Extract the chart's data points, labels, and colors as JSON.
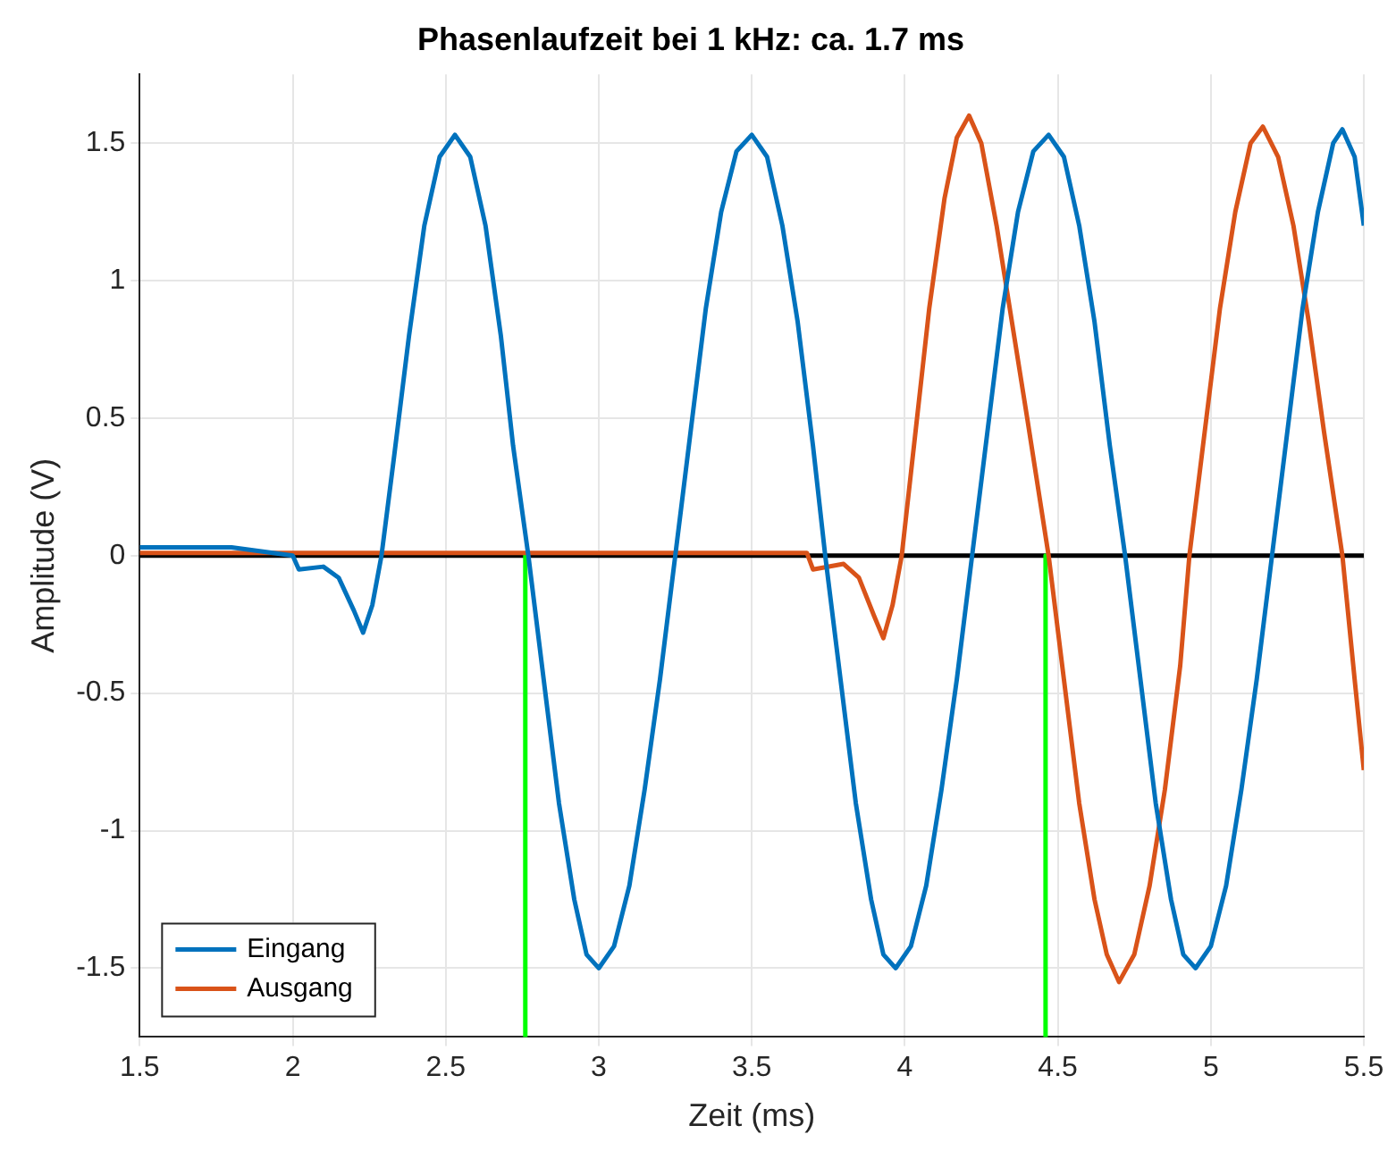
{
  "chart_data": {
    "type": "line",
    "title": "Phasenlaufzeit bei 1 kHz: ca. 1.7 ms",
    "xlabel": "Zeit (ms)",
    "ylabel": "Amplitude (V)",
    "xlim": [
      1.5,
      5.5
    ],
    "xticks": [
      1.5,
      2,
      2.5,
      3,
      3.5,
      4,
      4.5,
      5,
      5.5
    ],
    "ylim": [
      -1.75,
      1.75
    ],
    "yticks": [
      -1.5,
      -1,
      -0.5,
      0,
      0.5,
      1,
      1.5
    ],
    "grid": true,
    "legend": "bottom left",
    "marker": "none",
    "line_style": "solid",
    "ref_lines": [
      {
        "axis": "y",
        "value": 0,
        "color": "#000000"
      }
    ],
    "series": [
      {
        "name": "Eingang",
        "color": "#0072bd",
        "x": [
          1.5,
          1.8,
          2.0,
          2.02,
          2.1,
          2.15,
          2.2,
          2.23,
          2.26,
          2.29,
          2.33,
          2.38,
          2.43,
          2.48,
          2.53,
          2.58,
          2.63,
          2.68,
          2.72,
          2.77,
          2.82,
          2.87,
          2.92,
          2.96,
          3.0,
          3.05,
          3.1,
          3.15,
          3.2,
          3.25,
          3.3,
          3.35,
          3.4,
          3.45,
          3.5,
          3.55,
          3.6,
          3.65,
          3.7,
          3.74,
          3.79,
          3.84,
          3.89,
          3.93,
          3.97,
          4.02,
          4.07,
          4.12,
          4.17,
          4.22,
          4.27,
          4.32,
          4.37,
          4.42,
          4.47,
          4.52,
          4.57,
          4.62,
          4.67,
          4.72,
          4.77,
          4.82,
          4.87,
          4.91,
          4.95,
          5.0,
          5.05,
          5.1,
          5.15,
          5.2,
          5.25,
          5.3,
          5.35,
          5.4,
          5.43,
          5.47,
          5.5
        ],
        "values": [
          0.03,
          0.03,
          0,
          -0.05,
          -0.04,
          -0.08,
          -0.2,
          -0.28,
          -0.18,
          0,
          0.35,
          0.8,
          1.2,
          1.45,
          1.53,
          1.45,
          1.2,
          0.8,
          0.4,
          0,
          -0.45,
          -0.9,
          -1.25,
          -1.45,
          -1.5,
          -1.42,
          -1.2,
          -0.85,
          -0.45,
          0,
          0.45,
          0.9,
          1.25,
          1.47,
          1.53,
          1.45,
          1.2,
          0.85,
          0.4,
          0,
          -0.45,
          -0.9,
          -1.25,
          -1.45,
          -1.5,
          -1.42,
          -1.2,
          -0.85,
          -0.45,
          0,
          0.45,
          0.9,
          1.25,
          1.47,
          1.53,
          1.45,
          1.2,
          0.85,
          0.4,
          0,
          -0.45,
          -0.9,
          -1.25,
          -1.45,
          -1.5,
          -1.42,
          -1.2,
          -0.85,
          -0.45,
          0,
          0.45,
          0.9,
          1.25,
          1.5,
          1.55,
          1.45,
          1.2
        ]
      },
      {
        "name": "Ausgang",
        "color": "#d95319",
        "x": [
          1.5,
          3.68,
          3.7,
          3.8,
          3.85,
          3.9,
          3.93,
          3.96,
          3.99,
          4.03,
          4.08,
          4.13,
          4.17,
          4.21,
          4.25,
          4.3,
          4.35,
          4.4,
          4.47,
          4.52,
          4.57,
          4.62,
          4.66,
          4.7,
          4.75,
          4.8,
          4.85,
          4.9,
          4.93,
          4.98,
          5.03,
          5.08,
          5.13,
          5.17,
          5.22,
          5.27,
          5.32,
          5.37,
          5.43,
          5.47,
          5.5
        ],
        "values": [
          0.01,
          0.01,
          -0.05,
          -0.03,
          -0.08,
          -0.22,
          -0.3,
          -0.18,
          0,
          0.4,
          0.9,
          1.3,
          1.52,
          1.6,
          1.5,
          1.2,
          0.85,
          0.5,
          0,
          -0.45,
          -0.9,
          -1.25,
          -1.45,
          -1.55,
          -1.45,
          -1.2,
          -0.85,
          -0.4,
          0,
          0.45,
          0.9,
          1.25,
          1.5,
          1.56,
          1.45,
          1.2,
          0.85,
          0.45,
          0,
          -0.45,
          -0.78
        ]
      },
      {
        "color": "#00ff00",
        "x": [
          2.76,
          2.76
        ],
        "values": [
          0,
          -1.75
        ]
      },
      {
        "color": "#00ff00",
        "x": [
          4.46,
          4.46
        ],
        "values": [
          0,
          -1.75
        ]
      }
    ]
  }
}
